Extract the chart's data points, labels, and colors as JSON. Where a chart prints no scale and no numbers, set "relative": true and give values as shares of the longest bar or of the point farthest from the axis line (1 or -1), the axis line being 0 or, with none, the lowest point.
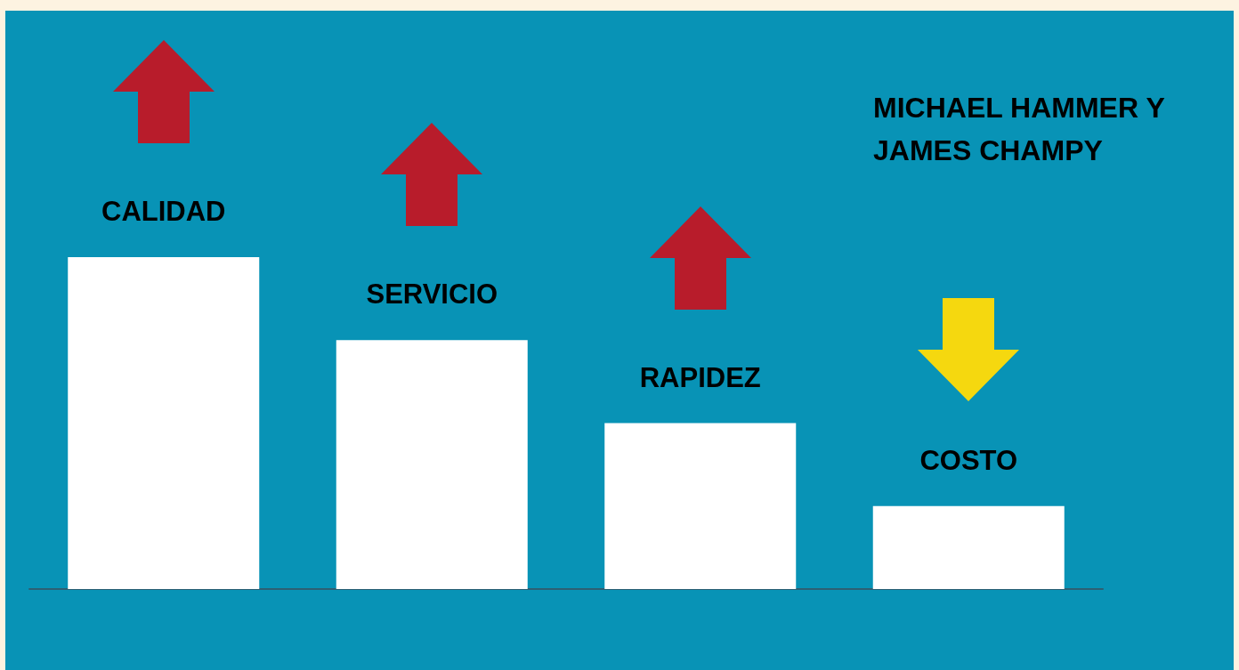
{
  "chart_data": {
    "type": "bar",
    "title": "MICHAEL HAMMER Y JAMES CHAMPY",
    "categories": [
      "CALIDAD",
      "SERVICIO",
      "RAPIDEZ",
      "COSTO"
    ],
    "values": [
      1,
      0.75,
      0.5,
      0.25
    ],
    "color": "#ffffff",
    "relative": true
  }
}
